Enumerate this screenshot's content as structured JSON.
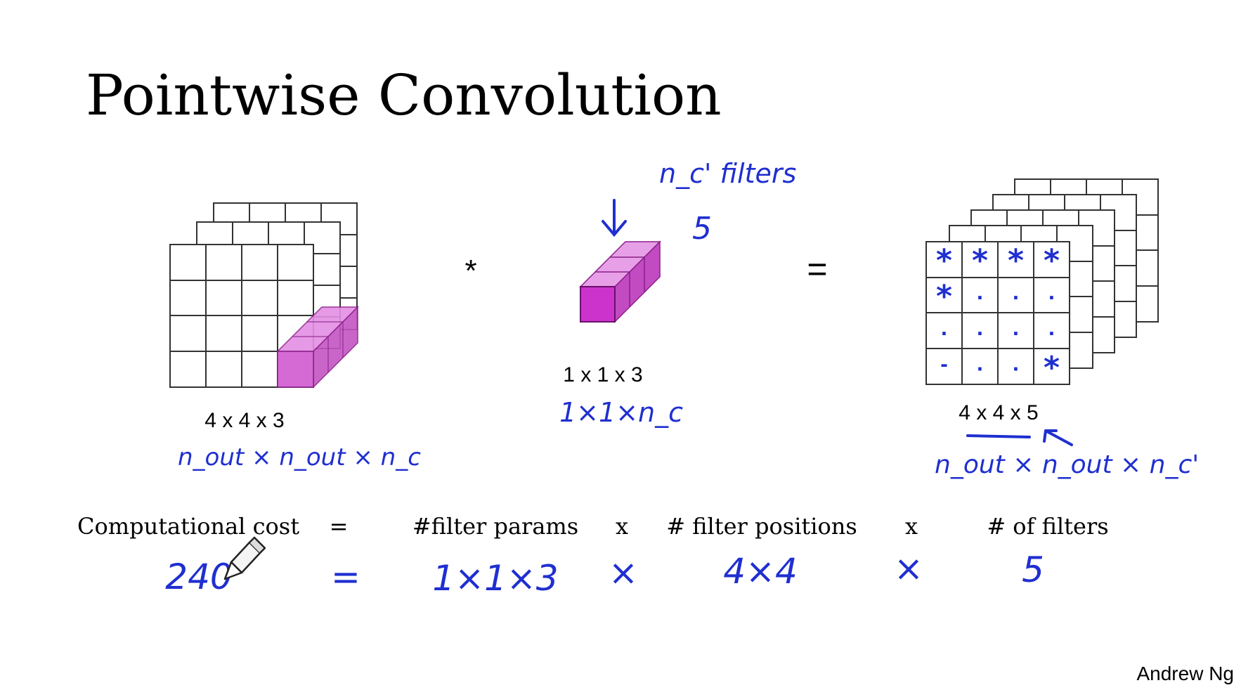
{
  "title": "Pointwise Convolution",
  "input": {
    "dims_label": "4 x 4 x 3",
    "hand_label": "n_out × n_out × n_c"
  },
  "operator_conv": "*",
  "filter": {
    "dims_label": "1 x 1 x 3",
    "hand_label": "1×1×n_c",
    "hand_top_label": "n_c' filters",
    "hand_count": "5"
  },
  "operator_equals": "=",
  "output": {
    "dims_label": "4 x 4 x 5",
    "hand_label": "n_out × n_out × n_c'",
    "cell_marks": [
      "*",
      "*",
      "*",
      "*",
      "*",
      ".",
      ".",
      ".",
      ".",
      ".",
      ".",
      ".",
      "-",
      ".",
      ".",
      "*"
    ]
  },
  "cost_row": {
    "computational_cost": "Computational cost",
    "eq": "=",
    "filter_params": "#filter params",
    "x1": "x",
    "filter_positions": "# filter positions",
    "x2": "x",
    "num_filters": "# of filters"
  },
  "hand_row": {
    "cost_value": "240",
    "eq": "=",
    "params_value": "1×1×3",
    "x1": "×",
    "positions_value": "4×4",
    "x2": "×",
    "filters_value": "5"
  },
  "author": "Andrew Ng",
  "colors": {
    "magenta": "#d94fd9",
    "magenta_dark": "#a020a0",
    "ink": "#1f2fd0"
  }
}
